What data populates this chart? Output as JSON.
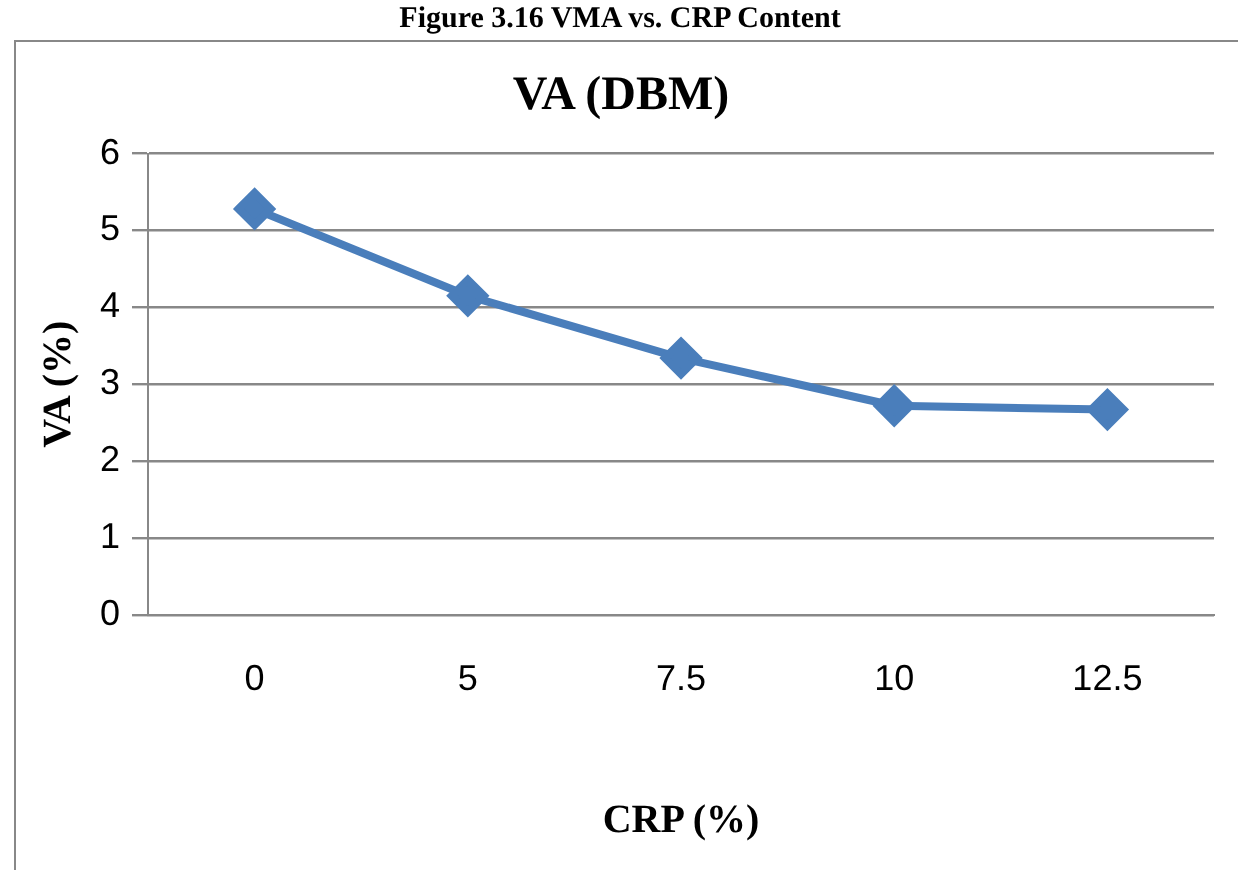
{
  "chart_data": {
    "type": "line",
    "title": "VA (DBM)",
    "xlabel": "CRP (%)",
    "ylabel": "VA (%)",
    "annotations": [
      "Figure 3.16 VMA vs. CRP Content"
    ],
    "categories": [
      "0",
      "5",
      "7.5",
      "10",
      "12.5"
    ],
    "series": [
      {
        "color": "#4a7ebb",
        "values": [
          5.28,
          4.15,
          3.34,
          2.72,
          2.67
        ]
      }
    ],
    "ylim": [
      0,
      6
    ],
    "yticks": [
      0,
      1,
      2,
      3,
      4,
      5,
      6
    ],
    "grid": "y",
    "legend": false,
    "marker": "diamond",
    "line_style": "solid"
  }
}
